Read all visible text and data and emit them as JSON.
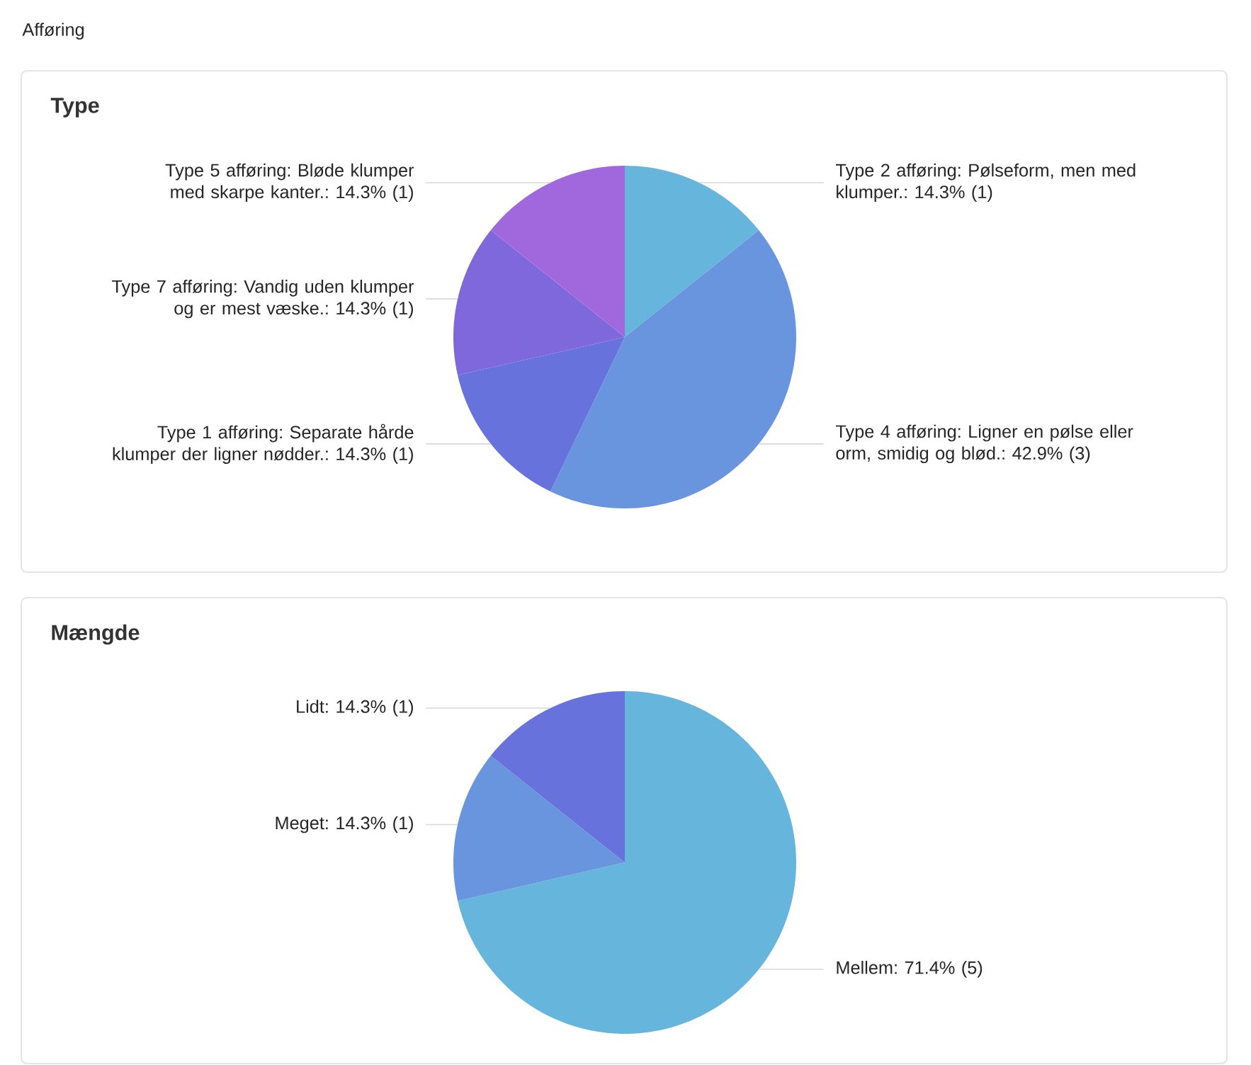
{
  "chart_data": [
    {
      "type": "pie",
      "title": "Type",
      "annotations": [
        "Afføring"
      ],
      "categories": [
        "Type 2 afføring: Pølseform, men med klumper.",
        "Type 4 afføring: Ligner en pølse eller orm, smidig og blød.",
        "Type 1 afføring: Separate hårde klumper der ligner nødder.",
        "Type 7 afføring: Vandig uden klumper og er mest væske.",
        "Type 5 afføring: Bløde klumper med skarpe kanter."
      ],
      "values": [
        14.3,
        42.9,
        14.3,
        14.3,
        14.3
      ],
      "value_labels": [
        ": 14.3% (1)",
        ": 42.9% (3)",
        ": 14.3% (1)",
        ": 14.3% (1)",
        ": 14.3% (1)"
      ],
      "colors": [
        "#66b5dc",
        "#6895dd",
        "#6872dc",
        "#7f68dc",
        "#a068dc"
      ]
    },
    {
      "type": "pie",
      "title": "Mængde",
      "categories": [
        "Mellem",
        "Meget",
        "Lidt"
      ],
      "values": [
        71.4,
        14.3,
        14.3
      ],
      "value_labels": [
        ": 71.4% (5)",
        ": 14.3% (1)",
        ": 14.3% (1)"
      ],
      "colors": [
        "#66b5dc",
        "#6895dd",
        "#6872dc"
      ]
    }
  ]
}
